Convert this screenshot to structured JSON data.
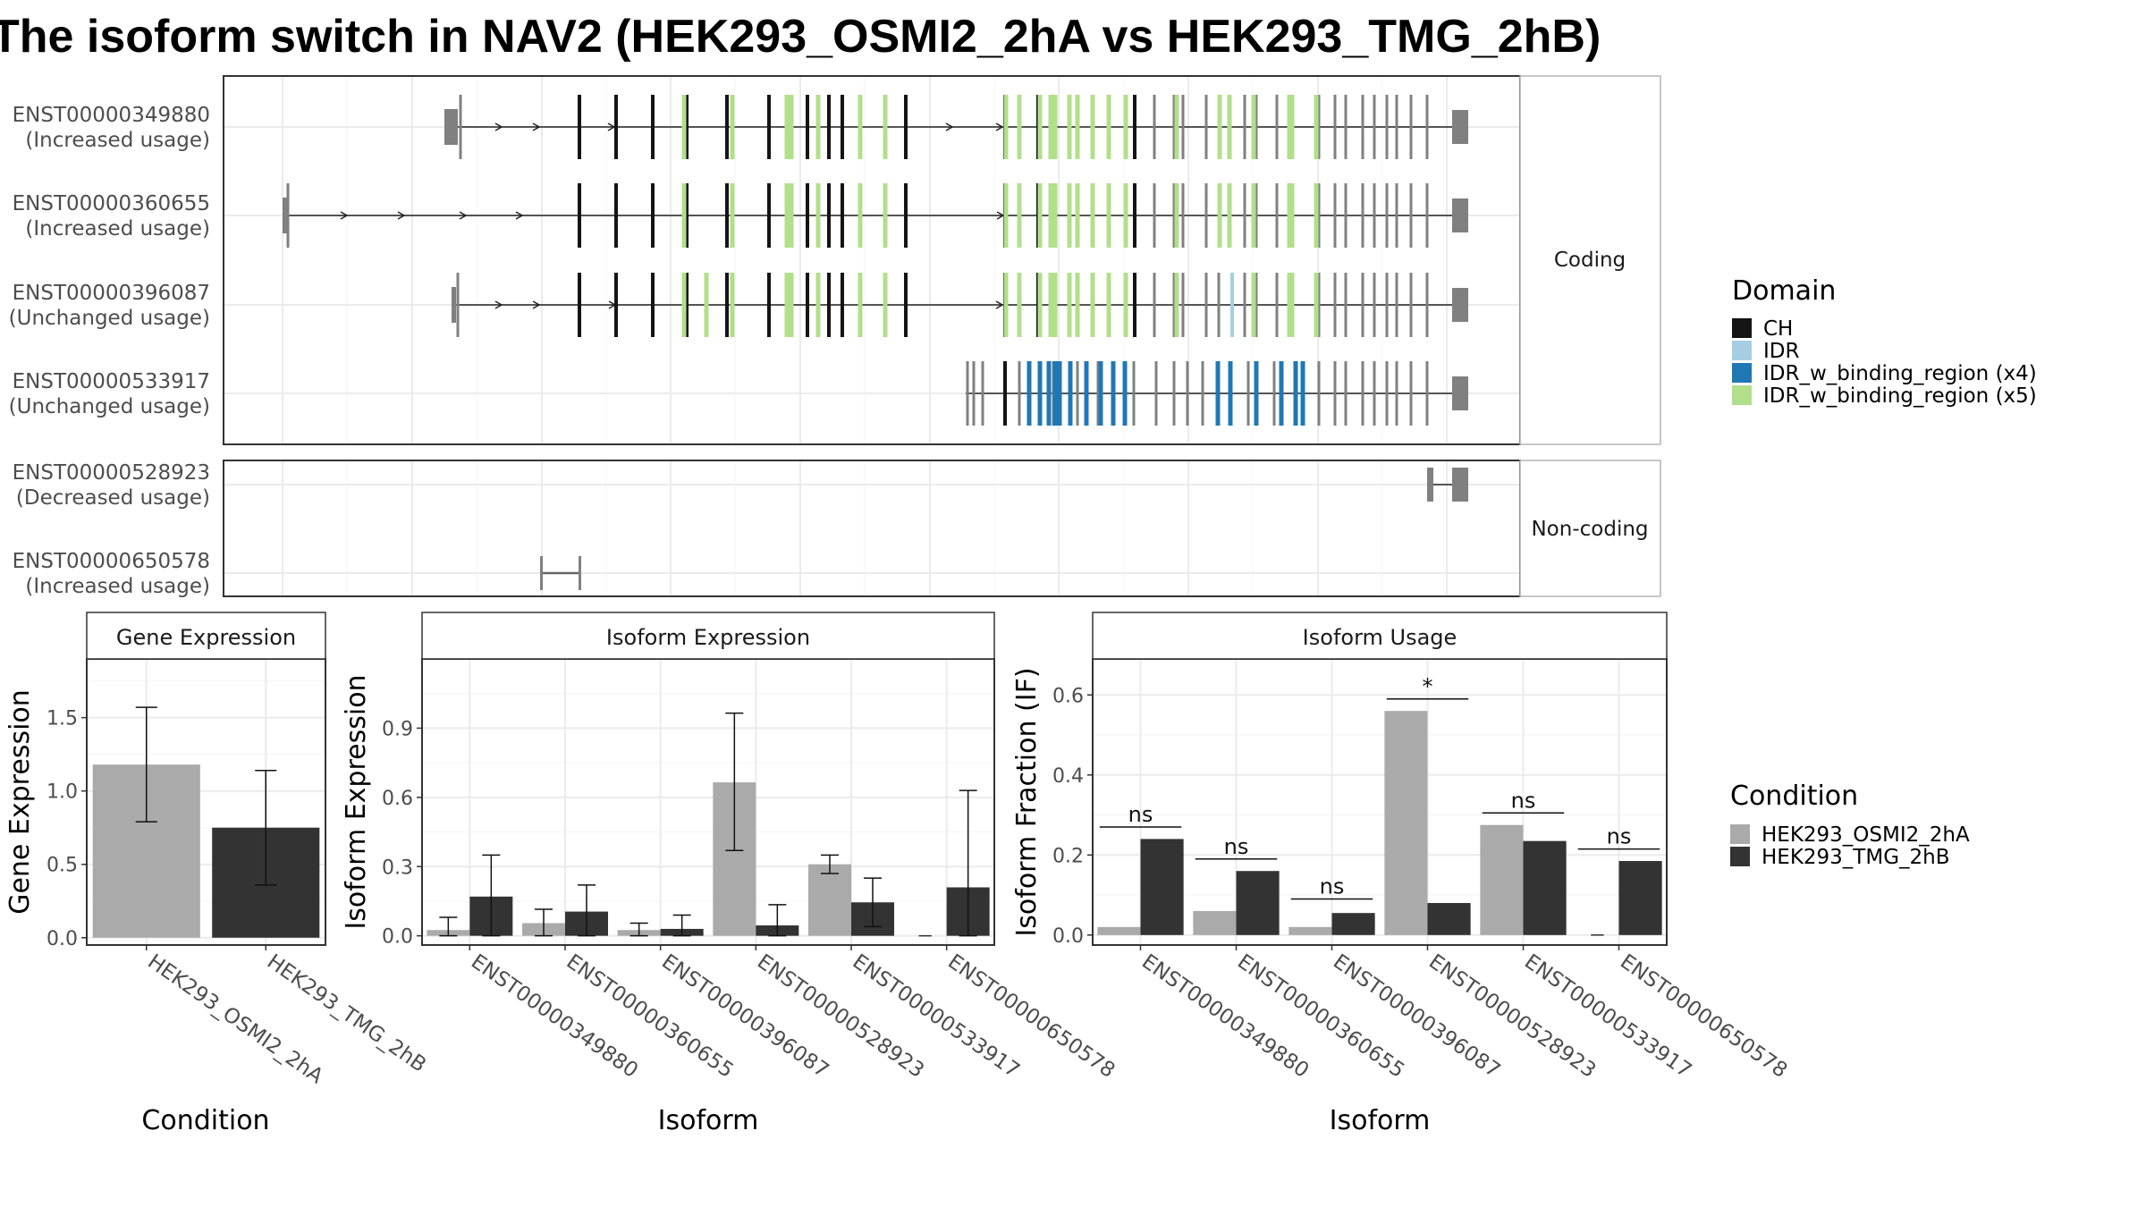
{
  "title": "The isoform switch in NAV2 (HEK293_OSMI2_2hA vs HEK293_TMG_2hB)",
  "colors": {
    "CH": "#141414",
    "IDR": "#a6cee3",
    "IDR_w_binding_region_x4": "#1f78b4",
    "IDR_w_binding_region_x5": "#b2df8a",
    "exon": "#808080",
    "cond_a": "#aaaaaa",
    "cond_b": "#333333"
  },
  "structure": {
    "facet_coding": "Coding",
    "facet_noncoding": "Non-coding",
    "coding_isoforms": [
      {
        "id": "ENST00000349880",
        "usage": "(Increased usage)"
      },
      {
        "id": "ENST00000360655",
        "usage": "(Increased usage)"
      },
      {
        "id": "ENST00000396087",
        "usage": "(Unchanged usage)"
      },
      {
        "id": "ENST00000533917",
        "usage": "(Unchanged usage)"
      }
    ],
    "noncoding_isoforms": [
      {
        "id": "ENST00000528923",
        "usage": "(Decreased usage)"
      },
      {
        "id": "ENST00000650578",
        "usage": "(Increased usage)"
      }
    ]
  },
  "legend_domain": {
    "title": "Domain",
    "items": [
      {
        "label": "CH",
        "color": "#141414"
      },
      {
        "label": "IDR",
        "color": "#a6cee3"
      },
      {
        "label": "IDR_w_binding_region (x4)",
        "color": "#1f78b4"
      },
      {
        "label": "IDR_w_binding_region (x5)",
        "color": "#b2df8a"
      }
    ]
  },
  "legend_condition": {
    "title": "Condition",
    "items": [
      {
        "label": "HEK293_OSMI2_2hA",
        "color": "#aaaaaa"
      },
      {
        "label": "HEK293_TMG_2hB",
        "color": "#333333"
      }
    ]
  },
  "chart_data": [
    {
      "type": "bar",
      "strip": "Gene Expression",
      "xlabel": "Condition",
      "ylabel": "Gene Expression",
      "categories": [
        "HEK293_OSMI2_2hA",
        "HEK293_TMG_2hB"
      ],
      "values": [
        1.18,
        0.75
      ],
      "err_low": [
        0.79,
        0.36
      ],
      "err_high": [
        1.57,
        1.14
      ],
      "ylim": [
        -0.05,
        1.9
      ],
      "yticks": [
        "0.0",
        "0.5",
        "1.0",
        "1.5"
      ]
    },
    {
      "type": "bar",
      "strip": "Isoform Expression",
      "xlabel": "Isoform",
      "ylabel": "Isoform Expression",
      "categories": [
        "ENST00000349880",
        "ENST00000360655",
        "ENST00000396087",
        "ENST00000528923",
        "ENST00000533917",
        "ENST00000650578"
      ],
      "series": [
        {
          "name": "HEK293_OSMI2_2hA",
          "values": [
            0.025,
            0.055,
            0.025,
            0.665,
            0.31,
            0.0
          ],
          "err_low": [
            0.0,
            0.0,
            0.0,
            0.37,
            0.27,
            0.0
          ],
          "err_high": [
            0.08,
            0.115,
            0.055,
            0.965,
            0.35,
            0.0
          ]
        },
        {
          "name": "HEK293_TMG_2hB",
          "values": [
            0.17,
            0.105,
            0.03,
            0.045,
            0.145,
            0.21
          ],
          "err_low": [
            0.0,
            0.0,
            0.0,
            0.0,
            0.04,
            0.0
          ],
          "err_high": [
            0.35,
            0.22,
            0.09,
            0.135,
            0.25,
            0.63
          ]
        }
      ],
      "ylim": [
        -0.04,
        1.2
      ],
      "yticks": [
        "0.0",
        "0.3",
        "0.6",
        "0.9"
      ]
    },
    {
      "type": "bar",
      "strip": "Isoform Usage",
      "xlabel": "Isoform",
      "ylabel": "Isoform Fraction (IF)",
      "categories": [
        "ENST00000349880",
        "ENST00000360655",
        "ENST00000396087",
        "ENST00000528923",
        "ENST00000533917",
        "ENST00000650578"
      ],
      "series": [
        {
          "name": "HEK293_OSMI2_2hA",
          "values": [
            0.02,
            0.06,
            0.02,
            0.56,
            0.275,
            0.0
          ]
        },
        {
          "name": "HEK293_TMG_2hB",
          "values": [
            0.24,
            0.16,
            0.055,
            0.08,
            0.235,
            0.185
          ]
        }
      ],
      "significance": [
        "ns",
        "ns",
        "ns",
        "*",
        "ns",
        "ns"
      ],
      "sig_y": [
        0.27,
        0.19,
        0.09,
        0.59,
        0.305,
        0.215
      ],
      "ylim": [
        -0.025,
        0.69
      ],
      "yticks": [
        "0.0",
        "0.2",
        "0.4",
        "0.6"
      ]
    }
  ]
}
